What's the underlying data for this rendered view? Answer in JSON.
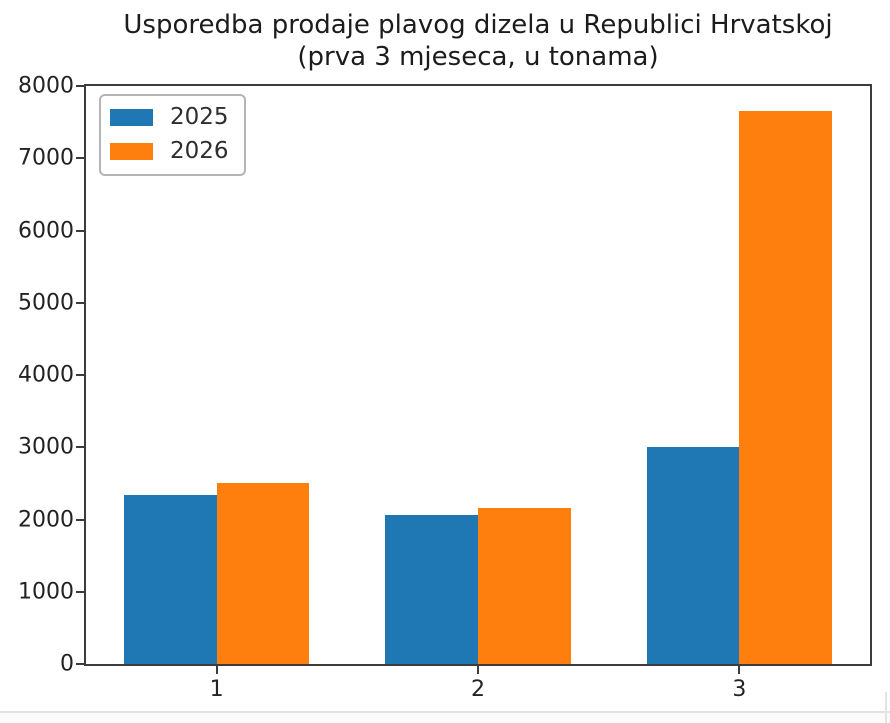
{
  "chart_data": {
    "type": "bar",
    "title": "Usporedba prodaje plavog dizela u Republici Hrvatskoj",
    "subtitle": "(prva 3 mjeseca, u tonama)",
    "xlabel": "",
    "ylabel": "",
    "categories": [
      "1",
      "2",
      "3"
    ],
    "series": [
      {
        "name": "2025",
        "color": "#1f77b4",
        "values": [
          2340,
          2060,
          3000
        ]
      },
      {
        "name": "2026",
        "color": "#ff7f0e",
        "values": [
          2500,
          2160,
          7660
        ]
      }
    ],
    "ylim": [
      0,
      8000
    ],
    "yticks": [
      0,
      1000,
      2000,
      3000,
      4000,
      5000,
      6000,
      7000,
      8000
    ],
    "grid": false,
    "legend_position": "upper-left"
  }
}
